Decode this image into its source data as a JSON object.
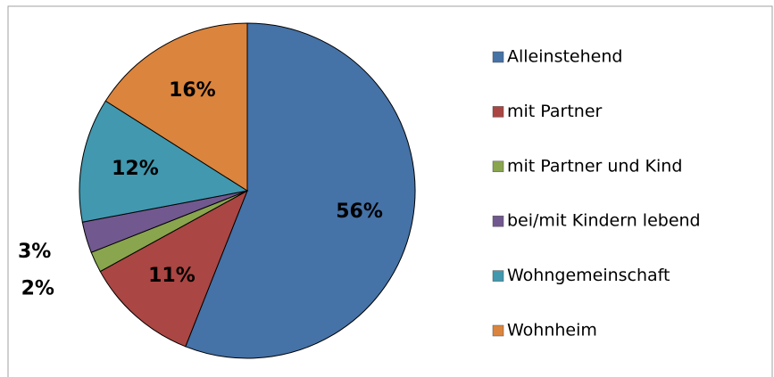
{
  "chart_data": {
    "type": "pie",
    "categories": [
      "Alleinstehend",
      "mit Partner",
      "mit Partner und Kind",
      "bei/mit Kindern lebend",
      "Wohngemeinschaft",
      "Wohnheim"
    ],
    "values": [
      56,
      11,
      2,
      3,
      12,
      16
    ],
    "value_labels": [
      "56%",
      "11%",
      "2%",
      "3%",
      "12%",
      "16%"
    ],
    "colors": [
      "#4572a7",
      "#aa4643",
      "#89a54e",
      "#71588f",
      "#4198af",
      "#db843d"
    ],
    "legend": "right"
  }
}
